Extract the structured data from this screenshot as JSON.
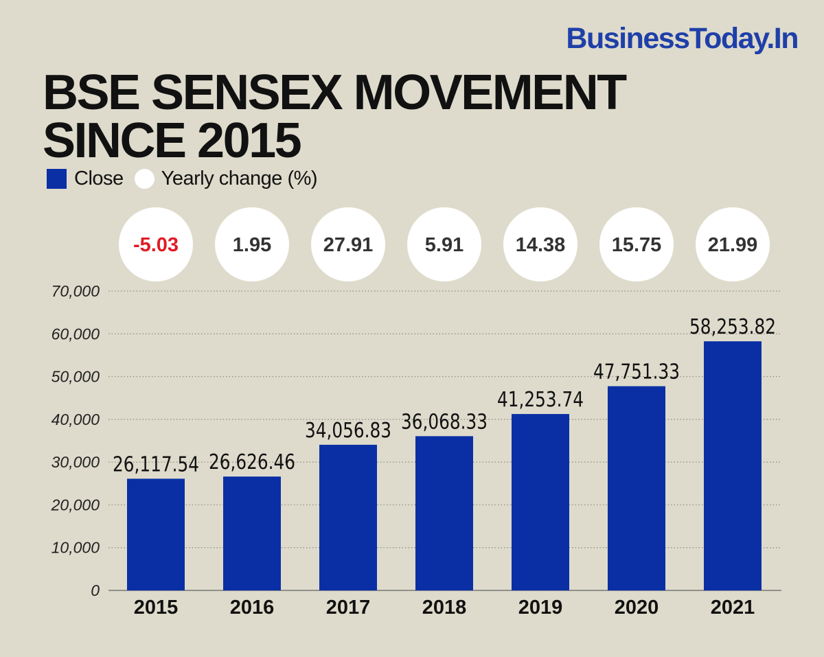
{
  "brand": "BusinessToday.In",
  "title_lines": [
    "BSE SENSEX MOVEMENT",
    "SINCE 2015"
  ],
  "legend": {
    "close_label": "Close",
    "change_label": "Yearly change (%)"
  },
  "colors": {
    "bar": "#0a2fa5",
    "negative": "#e01b24",
    "positive_text": "#333333",
    "bubble": "#ffffff",
    "background": "#dedbcc"
  },
  "chart_data": {
    "type": "bar",
    "title": "BSE SENSEX MOVEMENT SINCE 2015",
    "categories": [
      "2015",
      "2016",
      "2017",
      "2018",
      "2019",
      "2020",
      "2021"
    ],
    "series": [
      {
        "name": "Close",
        "values": [
          26117.54,
          26626.46,
          34056.83,
          36068.33,
          41253.74,
          47751.33,
          58253.82
        ]
      },
      {
        "name": "Yearly change (%)",
        "values": [
          -5.03,
          1.95,
          27.91,
          5.91,
          14.38,
          15.75,
          21.99
        ]
      }
    ],
    "value_labels": [
      "26,117.54",
      "26,626.46",
      "34,056.83",
      "36,068.33",
      "41,253.74",
      "47,751.33",
      "58,253.82"
    ],
    "change_labels": [
      "-5.03",
      "1.95",
      "27.91",
      "5.91",
      "14.38",
      "15.75",
      "21.99"
    ],
    "ylim": [
      0,
      70000
    ],
    "yticks": [
      0,
      10000,
      20000,
      30000,
      40000,
      50000,
      60000,
      70000
    ],
    "ytick_labels": [
      "0",
      "10,000",
      "20,000",
      "30,000",
      "40,000",
      "50,000",
      "60,000",
      "70,000"
    ],
    "grid": true,
    "grid_style": "dotted",
    "legend_position": "top-left"
  }
}
